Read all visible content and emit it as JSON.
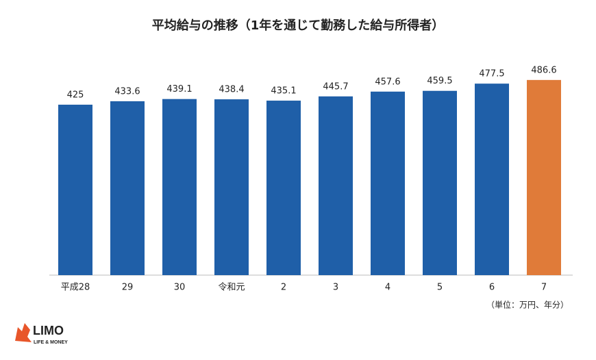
{
  "chart_data": {
    "type": "bar",
    "title": "平均給与の推移（1年を通じて勤務した給与所得者）",
    "categories": [
      "平成28",
      "29",
      "30",
      "令和元",
      "2",
      "3",
      "4",
      "5",
      "6",
      "7"
    ],
    "values": [
      425,
      433.6,
      439.1,
      438.4,
      435.1,
      445.7,
      457.6,
      459.5,
      477.5,
      486.6
    ],
    "colors": [
      "#1f5fa8",
      "#1f5fa8",
      "#1f5fa8",
      "#1f5fa8",
      "#1f5fa8",
      "#1f5fa8",
      "#1f5fa8",
      "#1f5fa8",
      "#1f5fa8",
      "#e07b39"
    ],
    "ylim": [
      0,
      500
    ],
    "note": "（単位：万円、年分）"
  },
  "logo": {
    "name": "LIMO",
    "tagline": "LIFE & MONEY"
  }
}
